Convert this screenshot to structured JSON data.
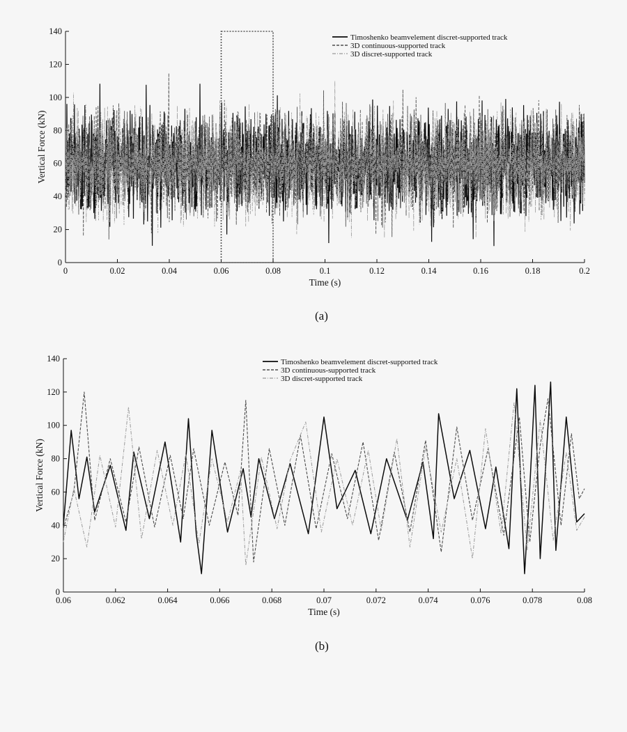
{
  "figure": {
    "panel_labels": [
      "(a)",
      "(b)"
    ]
  },
  "legend_entries": [
    "Timoshenko beamvelement discret-supported track",
    "3D continuous-supported track",
    "3D discret-supported track"
  ],
  "colors": {
    "background": "#f6f6f6",
    "timoshenko": "#0b0b0b",
    "continuous3d": "#4d4d4d",
    "discrete3d": "#9a9a9a",
    "zoom_box": "#555555"
  },
  "chart_data": [
    {
      "type": "line",
      "panel": "(a)",
      "xlabel": "Time (s)",
      "ylabel": "Vertical Force (kN)",
      "xlim": [
        0,
        0.2
      ],
      "ylim": [
        0,
        140
      ],
      "xticks": [
        0,
        0.02,
        0.04,
        0.06,
        0.08,
        0.1,
        0.12,
        0.14,
        0.16,
        0.18,
        0.2
      ],
      "xtick_labels": [
        "0",
        "0.02",
        "0.04",
        "0.06",
        "0.08",
        "0.1",
        "0.12",
        "0.14",
        "0.16",
        "0.18",
        "0.2"
      ],
      "yticks": [
        0,
        20,
        40,
        60,
        80,
        100,
        120,
        140
      ],
      "ytick_labels": [
        "0",
        "20",
        "40",
        "60",
        "80",
        "100",
        "120",
        "140"
      ],
      "legend_position": "top-right",
      "grid": false,
      "zoom_box": {
        "x": [
          0.06,
          0.08
        ],
        "y": [
          0,
          140
        ]
      },
      "series": [
        {
          "name": "Timoshenko beamvelement discret-supported track",
          "style": "solid",
          "mean": 60,
          "min": 10,
          "max": 131
        },
        {
          "name": "3D continuous-supported track",
          "style": "dashed",
          "mean": 60,
          "min": 14,
          "max": 128
        },
        {
          "name": "3D discret-supported track",
          "style": "dashdot",
          "mean": 59,
          "min": 15,
          "max": 127
        }
      ]
    },
    {
      "type": "line",
      "panel": "(b)",
      "xlabel": "Time (s)",
      "ylabel": "Vertical Force (kN)",
      "xlim": [
        0.06,
        0.08
      ],
      "ylim": [
        0,
        140
      ],
      "xticks": [
        0.06,
        0.062,
        0.064,
        0.066,
        0.068,
        0.07,
        0.072,
        0.074,
        0.076,
        0.078,
        0.08
      ],
      "xtick_labels": [
        "0.06",
        "0.062",
        "0.064",
        "0.066",
        "0.068",
        "0.07",
        "0.072",
        "0.074",
        "0.076",
        "0.078",
        "0.08"
      ],
      "yticks": [
        0,
        20,
        40,
        60,
        80,
        100,
        120,
        140
      ],
      "ytick_labels": [
        "0",
        "20",
        "40",
        "60",
        "80",
        "100",
        "120",
        "140"
      ],
      "legend_position": "top-right",
      "grid": false,
      "series": [
        {
          "name": "Timoshenko beamvelement discret-supported track",
          "style": "solid",
          "x": [
            0.06,
            0.0603,
            0.0606,
            0.0609,
            0.0612,
            0.0618,
            0.0624,
            0.0627,
            0.0633,
            0.0639,
            0.0645,
            0.0648,
            0.0651,
            0.0653,
            0.0657,
            0.0663,
            0.0669,
            0.0672,
            0.0675,
            0.0681,
            0.0687,
            0.0694,
            0.07,
            0.0705,
            0.0712,
            0.0718,
            0.0724,
            0.0732,
            0.0738,
            0.0742,
            0.0744,
            0.075,
            0.0756,
            0.0762,
            0.0766,
            0.0771,
            0.0774,
            0.0777,
            0.0779,
            0.0781,
            0.0783,
            0.0787,
            0.0789,
            0.0793,
            0.0797,
            0.08
          ],
          "y": [
            40,
            97,
            56,
            81,
            48,
            76,
            37,
            84,
            44,
            90,
            30,
            104,
            35,
            11,
            97,
            36,
            74,
            45,
            80,
            44,
            77,
            35,
            105,
            50,
            73,
            35,
            80,
            43,
            78,
            32,
            107,
            56,
            85,
            38,
            75,
            26,
            122,
            11,
            63,
            124,
            20,
            126,
            25,
            105,
            42,
            47
          ]
        },
        {
          "name": "3D continuous-supported track",
          "style": "dashed",
          "x": [
            0.06,
            0.0604,
            0.0608,
            0.0612,
            0.0618,
            0.0624,
            0.0629,
            0.0635,
            0.0641,
            0.0646,
            0.065,
            0.0656,
            0.0662,
            0.0667,
            0.067,
            0.0673,
            0.0679,
            0.0685,
            0.0691,
            0.0697,
            0.0703,
            0.0709,
            0.0715,
            0.0721,
            0.0727,
            0.0733,
            0.0739,
            0.0745,
            0.0751,
            0.0757,
            0.0763,
            0.0769,
            0.0775,
            0.0779,
            0.0783,
            0.0786,
            0.0791,
            0.0795,
            0.0798,
            0.08
          ],
          "y": [
            38,
            60,
            120,
            43,
            80,
            42,
            87,
            39,
            82,
            44,
            86,
            40,
            78,
            46,
            115,
            18,
            86,
            40,
            94,
            38,
            83,
            44,
            90,
            31,
            84,
            36,
            91,
            24,
            99,
            43,
            86,
            34,
            105,
            30,
            88,
            116,
            40,
            95,
            56,
            62
          ]
        },
        {
          "name": "3D discret-supported track",
          "style": "dashdot",
          "x": [
            0.06,
            0.0604,
            0.0609,
            0.0614,
            0.062,
            0.0625,
            0.063,
            0.0636,
            0.0642,
            0.0647,
            0.0652,
            0.0657,
            0.0663,
            0.0668,
            0.067,
            0.0676,
            0.0682,
            0.0687,
            0.0693,
            0.0699,
            0.0705,
            0.0711,
            0.0717,
            0.0722,
            0.0728,
            0.0733,
            0.0739,
            0.0745,
            0.0751,
            0.0757,
            0.0762,
            0.0768,
            0.0773,
            0.0778,
            0.0783,
            0.0788,
            0.0793,
            0.0797,
            0.08
          ],
          "y": [
            30,
            62,
            27,
            82,
            39,
            111,
            32,
            85,
            40,
            83,
            29,
            80,
            42,
            73,
            16,
            81,
            38,
            79,
            102,
            36,
            80,
            40,
            85,
            37,
            92,
            27,
            87,
            36,
            80,
            20,
            98,
            35,
            114,
            25,
            103,
            31,
            84,
            37,
            45
          ]
        }
      ]
    }
  ]
}
